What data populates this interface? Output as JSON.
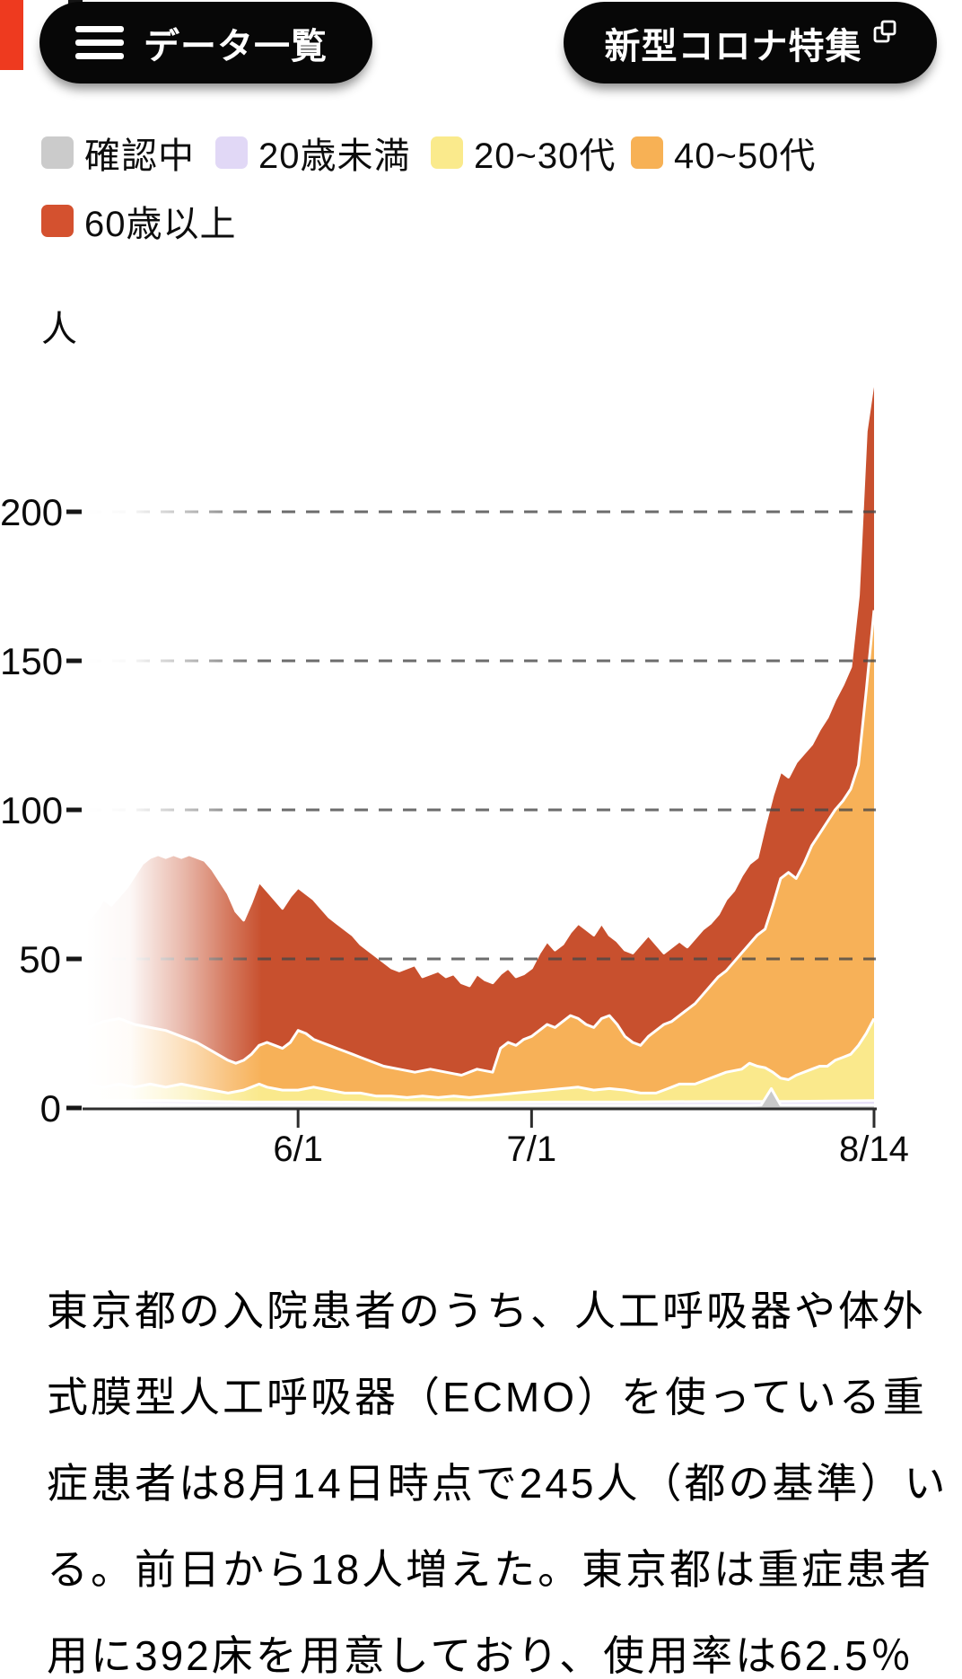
{
  "header": {
    "data_list_button": "データ一覧",
    "covid_feature_button": "新型コロナ特集",
    "accent_color": "#EE3A1F",
    "button_bg": "#070707"
  },
  "legend": {
    "items": [
      {
        "label": "確認中",
        "color": "#CBCBCB"
      },
      {
        "label": "20歳未満",
        "color": "#E1D8F6"
      },
      {
        "label": "20~30代",
        "color": "#FAEA8C"
      },
      {
        "label": "40~50代",
        "color": "#F7B155"
      },
      {
        "label": "60歳以上",
        "color": "#D4512F"
      }
    ]
  },
  "chart_data": {
    "type": "area",
    "stacked": true,
    "unit": "人",
    "grid": "dashed-horizontal",
    "left_fade": true,
    "y_axis": {
      "ticks": [
        0,
        50,
        100,
        150,
        200
      ],
      "max_value_shown": 245
    },
    "x_axis": {
      "note": "x values are day indices; day 27 = 6/1, day 57 = 7/1, day 101 = 8/14",
      "ticks": [
        {
          "label": "6/1",
          "day": 27
        },
        {
          "label": "7/1",
          "day": 57
        },
        {
          "label": "8/14",
          "day": 101
        }
      ]
    },
    "series": [
      {
        "name": "60歳以上",
        "color": "#C8502E",
        "role": "cumulative-top",
        "points": [
          [
            0,
            63
          ],
          [
            1,
            66
          ],
          [
            2,
            70
          ],
          [
            3,
            68
          ],
          [
            4,
            71
          ],
          [
            5,
            74
          ],
          [
            6,
            78
          ],
          [
            7,
            82
          ],
          [
            8,
            84
          ],
          [
            9,
            85
          ],
          [
            10,
            84
          ],
          [
            11,
            85
          ],
          [
            12,
            84
          ],
          [
            13,
            85
          ],
          [
            14,
            84
          ],
          [
            15,
            83
          ],
          [
            16,
            80
          ],
          [
            17,
            76
          ],
          [
            18,
            72
          ],
          [
            19,
            66
          ],
          [
            20,
            63
          ],
          [
            21,
            69
          ],
          [
            22,
            76
          ],
          [
            23,
            73
          ],
          [
            24,
            70
          ],
          [
            25,
            67
          ],
          [
            26,
            71
          ],
          [
            27,
            74
          ],
          [
            28,
            72
          ],
          [
            29,
            70
          ],
          [
            30,
            67
          ],
          [
            31,
            64
          ],
          [
            32,
            62
          ],
          [
            33,
            60
          ],
          [
            34,
            58
          ],
          [
            35,
            55
          ],
          [
            36,
            53
          ],
          [
            37,
            51
          ],
          [
            38,
            49
          ],
          [
            39,
            47
          ],
          [
            40,
            46
          ],
          [
            41,
            47
          ],
          [
            42,
            48
          ],
          [
            43,
            44
          ],
          [
            44,
            45
          ],
          [
            45,
            46
          ],
          [
            46,
            44
          ],
          [
            47,
            45
          ],
          [
            48,
            42
          ],
          [
            49,
            41
          ],
          [
            50,
            45
          ],
          [
            51,
            43
          ],
          [
            52,
            42
          ],
          [
            53,
            45
          ],
          [
            54,
            47
          ],
          [
            55,
            44
          ],
          [
            56,
            45
          ],
          [
            57,
            47
          ],
          [
            58,
            52
          ],
          [
            59,
            56
          ],
          [
            60,
            53
          ],
          [
            61,
            55
          ],
          [
            62,
            59
          ],
          [
            63,
            62
          ],
          [
            64,
            60
          ],
          [
            65,
            58
          ],
          [
            66,
            62
          ],
          [
            67,
            58
          ],
          [
            68,
            56
          ],
          [
            69,
            53
          ],
          [
            70,
            52
          ],
          [
            71,
            55
          ],
          [
            72,
            58
          ],
          [
            73,
            55
          ],
          [
            74,
            52
          ],
          [
            75,
            54
          ],
          [
            76,
            56
          ],
          [
            77,
            54
          ],
          [
            78,
            57
          ],
          [
            79,
            60
          ],
          [
            80,
            62
          ],
          [
            81,
            65
          ],
          [
            82,
            70
          ],
          [
            83,
            73
          ],
          [
            84,
            78
          ],
          [
            85,
            82
          ],
          [
            86,
            84
          ],
          [
            87,
            95
          ],
          [
            88,
            105
          ],
          [
            89,
            113
          ],
          [
            90,
            111
          ],
          [
            91,
            116
          ],
          [
            92,
            119
          ],
          [
            93,
            122
          ],
          [
            94,
            127
          ],
          [
            95,
            131
          ],
          [
            96,
            137
          ],
          [
            97,
            142
          ],
          [
            98,
            148
          ],
          [
            99,
            172
          ],
          [
            100,
            227
          ],
          [
            101,
            245
          ]
        ]
      },
      {
        "name": "40~50代",
        "color": "#F7B158",
        "role": "cumulative-top",
        "points": [
          [
            0,
            27
          ],
          [
            2,
            29
          ],
          [
            4,
            30
          ],
          [
            5,
            29
          ],
          [
            6,
            28
          ],
          [
            8,
            27
          ],
          [
            10,
            26
          ],
          [
            12,
            24
          ],
          [
            14,
            22
          ],
          [
            16,
            19
          ],
          [
            18,
            16
          ],
          [
            19,
            15
          ],
          [
            20,
            16
          ],
          [
            21,
            18
          ],
          [
            22,
            21
          ],
          [
            23,
            22
          ],
          [
            24,
            21
          ],
          [
            25,
            20
          ],
          [
            26,
            22
          ],
          [
            27,
            26
          ],
          [
            28,
            25
          ],
          [
            29,
            23
          ],
          [
            30,
            22
          ],
          [
            31,
            21
          ],
          [
            32,
            20
          ],
          [
            33,
            19
          ],
          [
            34,
            18
          ],
          [
            35,
            17
          ],
          [
            36,
            16
          ],
          [
            38,
            14
          ],
          [
            40,
            13
          ],
          [
            42,
            12
          ],
          [
            44,
            13
          ],
          [
            46,
            12
          ],
          [
            48,
            11
          ],
          [
            50,
            13
          ],
          [
            52,
            12
          ],
          [
            53,
            20
          ],
          [
            54,
            22
          ],
          [
            55,
            21
          ],
          [
            56,
            23
          ],
          [
            57,
            24
          ],
          [
            58,
            26
          ],
          [
            59,
            28
          ],
          [
            60,
            27
          ],
          [
            61,
            29
          ],
          [
            62,
            31
          ],
          [
            63,
            30
          ],
          [
            64,
            28
          ],
          [
            65,
            27
          ],
          [
            66,
            30
          ],
          [
            67,
            31
          ],
          [
            68,
            28
          ],
          [
            69,
            24
          ],
          [
            70,
            22
          ],
          [
            71,
            21
          ],
          [
            72,
            24
          ],
          [
            73,
            26
          ],
          [
            74,
            28
          ],
          [
            75,
            29
          ],
          [
            76,
            31
          ],
          [
            77,
            33
          ],
          [
            78,
            35
          ],
          [
            79,
            38
          ],
          [
            80,
            41
          ],
          [
            81,
            44
          ],
          [
            82,
            46
          ],
          [
            83,
            49
          ],
          [
            84,
            52
          ],
          [
            85,
            55
          ],
          [
            86,
            58
          ],
          [
            87,
            60
          ],
          [
            88,
            68
          ],
          [
            89,
            77
          ],
          [
            90,
            79
          ],
          [
            91,
            77
          ],
          [
            92,
            82
          ],
          [
            93,
            88
          ],
          [
            94,
            92
          ],
          [
            95,
            96
          ],
          [
            96,
            100
          ],
          [
            97,
            103
          ],
          [
            98,
            107
          ],
          [
            99,
            115
          ],
          [
            100,
            140
          ],
          [
            101,
            167
          ]
        ]
      },
      {
        "name": "20~30代",
        "color": "#FAE98C",
        "role": "cumulative-top",
        "points": [
          [
            0,
            8
          ],
          [
            2,
            7
          ],
          [
            4,
            8
          ],
          [
            6,
            7
          ],
          [
            8,
            8
          ],
          [
            10,
            7
          ],
          [
            12,
            8
          ],
          [
            14,
            7
          ],
          [
            16,
            6
          ],
          [
            18,
            5
          ],
          [
            20,
            6
          ],
          [
            21,
            7
          ],
          [
            22,
            8
          ],
          [
            23,
            7
          ],
          [
            25,
            6
          ],
          [
            27,
            6
          ],
          [
            29,
            7
          ],
          [
            31,
            6
          ],
          [
            33,
            5
          ],
          [
            35,
            5
          ],
          [
            37,
            4
          ],
          [
            39,
            4
          ],
          [
            41,
            3.5
          ],
          [
            43,
            4
          ],
          [
            45,
            3.5
          ],
          [
            47,
            4
          ],
          [
            49,
            3.5
          ],
          [
            51,
            4
          ],
          [
            53,
            4.5
          ],
          [
            55,
            5
          ],
          [
            57,
            5.5
          ],
          [
            59,
            6
          ],
          [
            61,
            6.5
          ],
          [
            63,
            7
          ],
          [
            65,
            6
          ],
          [
            67,
            6.5
          ],
          [
            69,
            6
          ],
          [
            71,
            5
          ],
          [
            73,
            5
          ],
          [
            74,
            6
          ],
          [
            75,
            7
          ],
          [
            76,
            8
          ],
          [
            78,
            8
          ],
          [
            80,
            10
          ],
          [
            82,
            12
          ],
          [
            84,
            13
          ],
          [
            85,
            15
          ],
          [
            86,
            14
          ],
          [
            87,
            13.5
          ],
          [
            88,
            12
          ],
          [
            89,
            10
          ],
          [
            90,
            9.5
          ],
          [
            91,
            11
          ],
          [
            93,
            13
          ],
          [
            94,
            14
          ],
          [
            95,
            14
          ],
          [
            96,
            16
          ],
          [
            97,
            17
          ],
          [
            98,
            18
          ],
          [
            99,
            21
          ],
          [
            100,
            25
          ],
          [
            101,
            30
          ]
        ]
      },
      {
        "name": "20歳未満",
        "color": "#E3DAF6",
        "role": "cumulative-top",
        "points": [
          [
            0,
            2.5
          ],
          [
            10,
            2.5
          ],
          [
            20,
            2
          ],
          [
            30,
            2
          ],
          [
            40,
            1.8
          ],
          [
            50,
            1.8
          ],
          [
            60,
            2
          ],
          [
            70,
            2
          ],
          [
            80,
            2.2
          ],
          [
            90,
            2.2
          ],
          [
            101,
            2.5
          ]
        ]
      },
      {
        "name": "確認中",
        "color": "#C9C9C9",
        "role": "cumulative-top",
        "points": [
          [
            0,
            1.2
          ],
          [
            20,
            1
          ],
          [
            40,
            0.9
          ],
          [
            60,
            0.9
          ],
          [
            85,
            0.9
          ],
          [
            86.5,
            1
          ],
          [
            87.8,
            6.5
          ],
          [
            89,
            1
          ],
          [
            101,
            1
          ]
        ]
      }
    ]
  },
  "paragraph": {
    "lines": [
      "東京都の入院患者のうち、人工呼吸器や体外",
      "式膜型人工呼吸器（ECMO）を使っている重",
      "症患者は8月14日時点で245人（都の基準）い",
      "る。前日から18人増えた。東京都は重症患者",
      "用に392床を用意しており、使用率は62.5％"
    ]
  }
}
